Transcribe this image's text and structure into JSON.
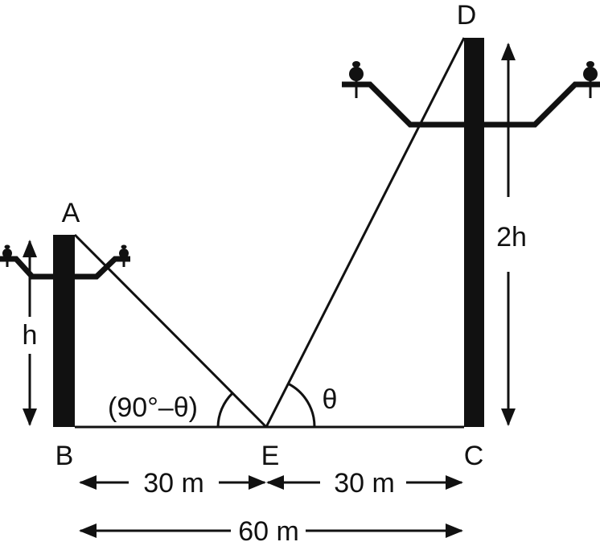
{
  "points": {
    "A": "A",
    "B": "B",
    "C": "C",
    "D": "D",
    "E": "E"
  },
  "labels": {
    "small_height": "h",
    "large_height": "2h",
    "angle_left": "(90°–θ)",
    "angle_right": "θ",
    "dist_BE": "30 m",
    "dist_EC": "30 m",
    "dist_BC": "60 m"
  },
  "colors": {
    "ink": "#111111",
    "background": "#ffffff"
  }
}
